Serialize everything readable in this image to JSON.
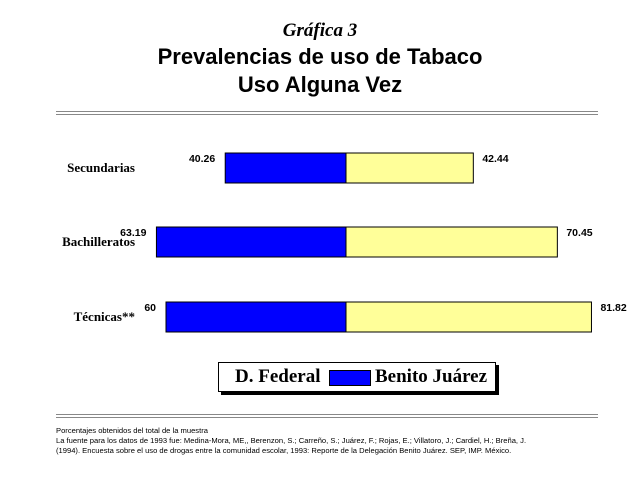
{
  "header": {
    "figure_label": "Gráfica 3",
    "title_line1": "Prevalencias de uso de Tabaco",
    "title_line2": "Uso Alguna Vez"
  },
  "chart_data": {
    "type": "bar",
    "orientation": "horizontal-diverging",
    "categories": [
      "Secundarias",
      "Bachilleratos",
      "Técnicas**"
    ],
    "series": [
      {
        "name": "D. Federal",
        "values": [
          40.26,
          63.19,
          60
        ],
        "labels": [
          "40.26",
          "63.19",
          "60"
        ],
        "color": "#0000ff"
      },
      {
        "name": "Benito Juárez",
        "values": [
          42.44,
          70.45,
          81.82
        ],
        "labels": [
          "42.44",
          "70.45",
          "81.82"
        ],
        "color": "#ffff99"
      }
    ],
    "grid": false,
    "legend_placement": "bottom"
  },
  "footer": {
    "note1": "Porcentajes obtenidos del total de la muestra",
    "note2": "La fuente para los datos de 1993 fue: Medina-Mora, ME,, Berenzon, S.; Carreño, S.; Juárez, F.; Rojas, E.; Villatoro, J.; Cardiel, H.; Breña, J.",
    "note3": "(1994). Encuesta sobre el uso de drogas entre la comunidad escolar, 1993: Reporte de la Delegación Benito Juárez. SEP, IMP. México."
  }
}
